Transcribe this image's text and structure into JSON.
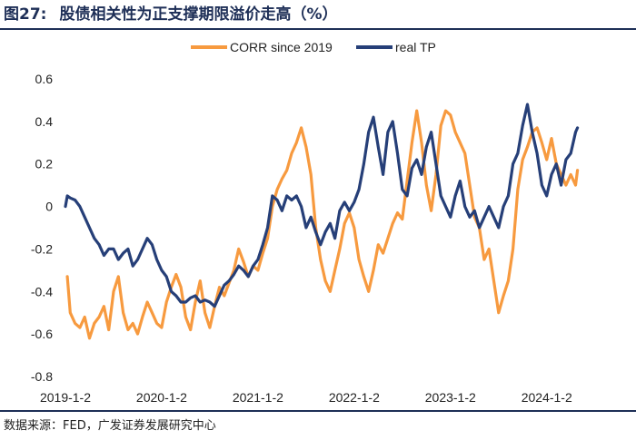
{
  "figure": {
    "number": "图27:",
    "title": "股债相关性为正支撑期限溢价走高（%）"
  },
  "source": "数据来源：FED，广发证券发展研究中心",
  "colors": {
    "corr": "#f79a3f",
    "tp": "#263f78",
    "rule": "#1e2f57"
  },
  "chart_data": {
    "type": "line",
    "title": "股债相关性为正支撑期限溢价走高（%）",
    "xlabel": "",
    "ylabel": "",
    "ylim": [
      -0.8,
      0.6
    ],
    "yticks": [
      -0.8,
      -0.6,
      -0.4,
      -0.2,
      0,
      0.2,
      0.4,
      0.6
    ],
    "ytick_labels": [
      "-0.8",
      "-0.6",
      "-0.4",
      "-0.2",
      "0",
      "0.2",
      "0.4",
      "0.6"
    ],
    "xlim": [
      2019.0,
      2024.55
    ],
    "xticks": [
      2019.0,
      2020.0,
      2021.0,
      2022.0,
      2023.0,
      2024.0
    ],
    "xtick_labels": [
      "2019-1-2",
      "2020-1-2",
      "2021-1-2",
      "2022-1-2",
      "2023-1-2",
      "2024-1-2"
    ],
    "legend": "top-center",
    "series": [
      {
        "name": "CORR since 2019",
        "color": "#f79a3f",
        "x": [
          2019.02,
          2019.05,
          2019.1,
          2019.15,
          2019.2,
          2019.25,
          2019.3,
          2019.35,
          2019.4,
          2019.45,
          2019.5,
          2019.55,
          2019.6,
          2019.65,
          2019.7,
          2019.75,
          2019.8,
          2019.85,
          2019.9,
          2019.95,
          2020.0,
          2020.05,
          2020.1,
          2020.15,
          2020.2,
          2020.25,
          2020.3,
          2020.35,
          2020.4,
          2020.45,
          2020.5,
          2020.55,
          2020.6,
          2020.65,
          2020.7,
          2020.75,
          2020.8,
          2020.85,
          2020.9,
          2020.95,
          2021.0,
          2021.05,
          2021.1,
          2021.15,
          2021.2,
          2021.25,
          2021.3,
          2021.35,
          2021.4,
          2021.45,
          2021.5,
          2021.55,
          2021.6,
          2021.65,
          2021.7,
          2021.75,
          2021.8,
          2021.85,
          2021.9,
          2021.95,
          2022.0,
          2022.05,
          2022.1,
          2022.15,
          2022.2,
          2022.25,
          2022.3,
          2022.35,
          2022.4,
          2022.45,
          2022.5,
          2022.55,
          2022.6,
          2022.65,
          2022.7,
          2022.75,
          2022.8,
          2022.85,
          2022.9,
          2022.95,
          2023.0,
          2023.05,
          2023.1,
          2023.15,
          2023.2,
          2023.25,
          2023.3,
          2023.35,
          2023.4,
          2023.45,
          2023.5,
          2023.55,
          2023.6,
          2023.65,
          2023.7,
          2023.75,
          2023.8,
          2023.85,
          2023.9,
          2023.95,
          2024.0,
          2024.05,
          2024.1,
          2024.15,
          2024.2,
          2024.25,
          2024.3,
          2024.32
        ],
        "values": [
          -0.33,
          -0.5,
          -0.55,
          -0.57,
          -0.52,
          -0.62,
          -0.55,
          -0.52,
          -0.47,
          -0.58,
          -0.4,
          -0.33,
          -0.5,
          -0.58,
          -0.55,
          -0.6,
          -0.52,
          -0.45,
          -0.5,
          -0.55,
          -0.57,
          -0.45,
          -0.38,
          -0.32,
          -0.38,
          -0.52,
          -0.58,
          -0.45,
          -0.35,
          -0.5,
          -0.57,
          -0.47,
          -0.38,
          -0.42,
          -0.36,
          -0.3,
          -0.2,
          -0.26,
          -0.33,
          -0.28,
          -0.3,
          -0.22,
          -0.15,
          0.0,
          0.08,
          0.13,
          0.17,
          0.25,
          0.3,
          0.37,
          0.28,
          0.15,
          -0.1,
          -0.25,
          -0.35,
          -0.4,
          -0.3,
          -0.2,
          -0.08,
          -0.03,
          -0.1,
          -0.25,
          -0.33,
          -0.4,
          -0.3,
          -0.18,
          -0.22,
          -0.15,
          -0.08,
          -0.03,
          -0.06,
          0.12,
          0.3,
          0.45,
          0.3,
          0.1,
          -0.02,
          0.15,
          0.38,
          0.45,
          0.43,
          0.35,
          0.3,
          0.25,
          0.1,
          -0.05,
          -0.1,
          -0.25,
          -0.2,
          -0.35,
          -0.5,
          -0.42,
          -0.35,
          -0.2,
          0.08,
          0.22,
          0.28,
          0.35,
          0.37,
          0.3,
          0.22,
          0.32,
          0.2,
          0.15,
          0.1,
          0.15,
          0.1,
          0.17
        ]
      },
      {
        "name": "real TP",
        "color": "#263f78",
        "x": [
          2019.0,
          2019.02,
          2019.05,
          2019.1,
          2019.15,
          2019.2,
          2019.25,
          2019.3,
          2019.35,
          2019.4,
          2019.45,
          2019.5,
          2019.55,
          2019.6,
          2019.65,
          2019.7,
          2019.75,
          2019.8,
          2019.85,
          2019.9,
          2019.95,
          2020.0,
          2020.05,
          2020.1,
          2020.15,
          2020.2,
          2020.25,
          2020.3,
          2020.35,
          2020.4,
          2020.45,
          2020.5,
          2020.55,
          2020.6,
          2020.65,
          2020.7,
          2020.75,
          2020.8,
          2020.85,
          2020.9,
          2020.95,
          2021.0,
          2021.05,
          2021.1,
          2021.15,
          2021.2,
          2021.25,
          2021.3,
          2021.35,
          2021.4,
          2021.45,
          2021.5,
          2021.55,
          2021.6,
          2021.65,
          2021.7,
          2021.75,
          2021.8,
          2021.85,
          2021.9,
          2021.95,
          2022.0,
          2022.05,
          2022.1,
          2022.15,
          2022.2,
          2022.25,
          2022.3,
          2022.35,
          2022.4,
          2022.45,
          2022.5,
          2022.55,
          2022.6,
          2022.65,
          2022.7,
          2022.75,
          2022.8,
          2022.85,
          2022.9,
          2022.95,
          2023.0,
          2023.05,
          2023.1,
          2023.15,
          2023.2,
          2023.25,
          2023.3,
          2023.35,
          2023.4,
          2023.45,
          2023.5,
          2023.55,
          2023.6,
          2023.65,
          2023.7,
          2023.75,
          2023.8,
          2023.85,
          2023.9,
          2023.95,
          2024.0,
          2024.05,
          2024.1,
          2024.15,
          2024.2,
          2024.25,
          2024.3,
          2024.32
        ],
        "values": [
          0.0,
          0.05,
          0.04,
          0.03,
          0.0,
          -0.05,
          -0.1,
          -0.15,
          -0.18,
          -0.23,
          -0.2,
          -0.2,
          -0.25,
          -0.22,
          -0.2,
          -0.28,
          -0.25,
          -0.2,
          -0.15,
          -0.18,
          -0.25,
          -0.3,
          -0.33,
          -0.4,
          -0.42,
          -0.45,
          -0.45,
          -0.43,
          -0.42,
          -0.45,
          -0.44,
          -0.45,
          -0.47,
          -0.42,
          -0.37,
          -0.35,
          -0.32,
          -0.28,
          -0.3,
          -0.33,
          -0.28,
          -0.25,
          -0.18,
          -0.1,
          0.05,
          0.03,
          -0.02,
          0.05,
          0.03,
          0.05,
          0.0,
          -0.1,
          -0.05,
          -0.12,
          -0.18,
          -0.12,
          -0.08,
          -0.15,
          -0.02,
          0.02,
          -0.02,
          0.02,
          0.08,
          0.2,
          0.35,
          0.42,
          0.28,
          0.15,
          0.35,
          0.4,
          0.25,
          0.08,
          0.05,
          0.18,
          0.22,
          0.15,
          0.28,
          0.35,
          0.2,
          0.05,
          0.0,
          -0.05,
          0.05,
          0.12,
          0.0,
          -0.05,
          -0.02,
          -0.1,
          -0.05,
          0.0,
          -0.05,
          -0.1,
          0.0,
          0.05,
          0.2,
          0.25,
          0.38,
          0.48,
          0.35,
          0.25,
          0.1,
          0.05,
          0.15,
          0.2,
          0.1,
          0.22,
          0.25,
          0.35,
          0.37
        ]
      }
    ]
  }
}
